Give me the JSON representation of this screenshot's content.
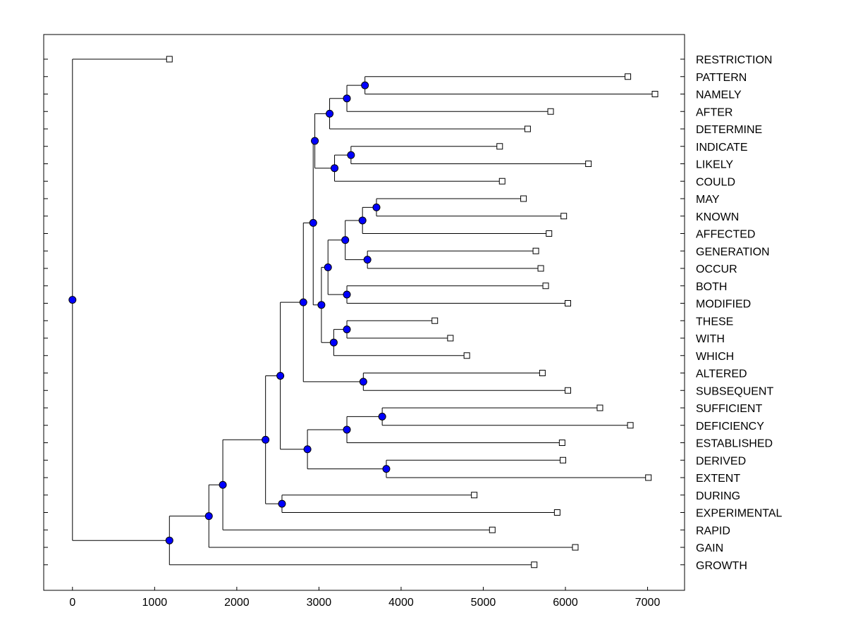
{
  "chart_data": {
    "type": "dendrogram",
    "orientation": "horizontal",
    "title": "",
    "xlabel": "",
    "ylabel": "",
    "xlim": [
      -350,
      7450
    ],
    "xticks": [
      0,
      1000,
      2000,
      3000,
      4000,
      5000,
      6000,
      7000
    ],
    "xtick_labels": [
      "0",
      "1000",
      "2000",
      "3000",
      "4000",
      "5000",
      "6000",
      "7000"
    ],
    "grid": false,
    "colors": {
      "line": "#000000",
      "node_fill": "#0000ff",
      "leaf_fill": "#ffffff"
    },
    "leaves": [
      {
        "label": "RESTRICTION",
        "value": 1180
      },
      {
        "label": "PATTERN",
        "value": 6760
      },
      {
        "label": "NAMELY",
        "value": 7090
      },
      {
        "label": "AFTER",
        "value": 5820
      },
      {
        "label": "DETERMINE",
        "value": 5540
      },
      {
        "label": "INDICATE",
        "value": 5200
      },
      {
        "label": "LIKELY",
        "value": 6280
      },
      {
        "label": "COULD",
        "value": 5230
      },
      {
        "label": "MAY",
        "value": 5490
      },
      {
        "label": "KNOWN",
        "value": 5980
      },
      {
        "label": "AFFECTED",
        "value": 5800
      },
      {
        "label": "GENERATION",
        "value": 5640
      },
      {
        "label": "OCCUR",
        "value": 5700
      },
      {
        "label": "BOTH",
        "value": 5760
      },
      {
        "label": "MODIFIED",
        "value": 6030
      },
      {
        "label": "THESE",
        "value": 4410
      },
      {
        "label": "WITH",
        "value": 4600
      },
      {
        "label": "WHICH",
        "value": 4800
      },
      {
        "label": "ALTERED",
        "value": 5720
      },
      {
        "label": "SUBSEQUENT",
        "value": 6030
      },
      {
        "label": "SUFFICIENT",
        "value": 6420
      },
      {
        "label": "DEFICIENCY",
        "value": 6790
      },
      {
        "label": "ESTABLISHED",
        "value": 5960
      },
      {
        "label": "DERIVED",
        "value": 5970
      },
      {
        "label": "EXTENT",
        "value": 7010
      },
      {
        "label": "DURING",
        "value": 4890
      },
      {
        "label": "EXPERIMENTAL",
        "value": 5900
      },
      {
        "label": "RAPID",
        "value": 5110
      },
      {
        "label": "GAIN",
        "value": 6120
      },
      {
        "label": "GROWTH",
        "value": 5620
      }
    ],
    "merges": [
      {
        "id": "n1",
        "value": 3560,
        "children": [
          "PATTERN",
          "NAMELY"
        ]
      },
      {
        "id": "n2",
        "value": 3340,
        "children": [
          "n1",
          "AFTER"
        ]
      },
      {
        "id": "n3",
        "value": 3130,
        "children": [
          "n2",
          "DETERMINE"
        ]
      },
      {
        "id": "n4",
        "value": 3390,
        "children": [
          "INDICATE",
          "LIKELY"
        ]
      },
      {
        "id": "n5",
        "value": 3190,
        "children": [
          "n4",
          "COULD"
        ]
      },
      {
        "id": "n6",
        "value": 2950,
        "children": [
          "n3",
          "n5"
        ]
      },
      {
        "id": "n7",
        "value": 3700,
        "children": [
          "MAY",
          "KNOWN"
        ]
      },
      {
        "id": "n8",
        "value": 3530,
        "children": [
          "n7",
          "AFFECTED"
        ]
      },
      {
        "id": "n9",
        "value": 3590,
        "children": [
          "GENERATION",
          "OCCUR"
        ]
      },
      {
        "id": "n10",
        "value": 3320,
        "children": [
          "n8",
          "n9"
        ]
      },
      {
        "id": "n11",
        "value": 3340,
        "children": [
          "BOTH",
          "MODIFIED"
        ]
      },
      {
        "id": "n12",
        "value": 3110,
        "children": [
          "n10",
          "n11"
        ]
      },
      {
        "id": "n13",
        "value": 3340,
        "children": [
          "THESE",
          "WITH"
        ]
      },
      {
        "id": "n14",
        "value": 3180,
        "children": [
          "n13",
          "WHICH"
        ]
      },
      {
        "id": "n15",
        "value": 3030,
        "children": [
          "n12",
          "n14"
        ]
      },
      {
        "id": "n16",
        "value": 2930,
        "children": [
          "n6",
          "n15"
        ]
      },
      {
        "id": "n17",
        "value": 3540,
        "children": [
          "ALTERED",
          "SUBSEQUENT"
        ]
      },
      {
        "id": "n18",
        "value": 2810,
        "children": [
          "n16",
          "n17"
        ]
      },
      {
        "id": "n19",
        "value": 3770,
        "children": [
          "SUFFICIENT",
          "DEFICIENCY"
        ]
      },
      {
        "id": "n20",
        "value": 3340,
        "children": [
          "n19",
          "ESTABLISHED"
        ]
      },
      {
        "id": "n21",
        "value": 3820,
        "children": [
          "DERIVED",
          "EXTENT"
        ]
      },
      {
        "id": "n22",
        "value": 2860,
        "children": [
          "n20",
          "n21"
        ]
      },
      {
        "id": "n23",
        "value": 2530,
        "children": [
          "n18",
          "n22"
        ]
      },
      {
        "id": "n24",
        "value": 2550,
        "children": [
          "DURING",
          "EXPERIMENTAL"
        ]
      },
      {
        "id": "n25",
        "value": 2350,
        "children": [
          "n23",
          "n24"
        ]
      },
      {
        "id": "n26",
        "value": 1830,
        "children": [
          "n25",
          "RAPID"
        ]
      },
      {
        "id": "n27",
        "value": 1660,
        "children": [
          "n26",
          "GAIN"
        ]
      },
      {
        "id": "n28",
        "value": 1180,
        "children": [
          "n27",
          "GROWTH"
        ]
      },
      {
        "id": "n29",
        "value": 0,
        "children": [
          "RESTRICTION",
          "n28"
        ]
      }
    ]
  }
}
